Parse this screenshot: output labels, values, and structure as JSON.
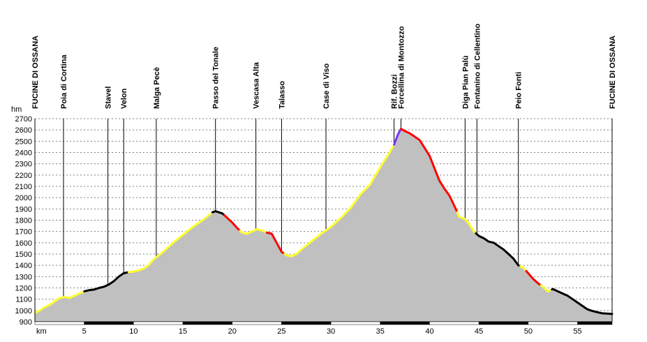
{
  "chart_data": {
    "type": "area",
    "ylabel": "hm",
    "xlabel": "km",
    "ylim": [
      900,
      2700
    ],
    "yticks": [
      900,
      1000,
      1100,
      1200,
      1300,
      1400,
      1500,
      1600,
      1700,
      1800,
      1900,
      2000,
      2100,
      2200,
      2300,
      2400,
      2500,
      2600,
      2700
    ],
    "xlim": [
      0,
      58.5
    ],
    "xticks": [
      5,
      10,
      15,
      20,
      25,
      30,
      35,
      40,
      45,
      50,
      55
    ],
    "grid": "horizontal dashed",
    "waypoints": [
      {
        "km": 0,
        "label": "FUCINE DI OSSANA"
      },
      {
        "km": 2.9,
        "label": "Poia di Cortina"
      },
      {
        "km": 7.4,
        "label": "Stavel"
      },
      {
        "km": 9.0,
        "label": "Velon"
      },
      {
        "km": 12.3,
        "label": "Malga Pecè"
      },
      {
        "km": 18.3,
        "label": "Passo del Tonale"
      },
      {
        "km": 22.4,
        "label": "Vescasa Alta"
      },
      {
        "km": 25.0,
        "label": "Talasso"
      },
      {
        "km": 29.5,
        "label": "Case di Viso"
      },
      {
        "km": 36.4,
        "label": "Rif. Bozzi"
      },
      {
        "km": 37.1,
        "label": "Forcellina di Montozzo"
      },
      {
        "km": 43.6,
        "label": "Diga Pian Palù"
      },
      {
        "km": 44.8,
        "label": "Fontanino di Cellentino"
      },
      {
        "km": 49.0,
        "label": "Peio Fonti"
      },
      {
        "km": 58.5,
        "label": "FUCINE DI OSSANA"
      }
    ],
    "profile": [
      [
        0,
        980
      ],
      [
        0.5,
        1000
      ],
      [
        1,
        1030
      ],
      [
        1.5,
        1050
      ],
      [
        2,
        1080
      ],
      [
        2.5,
        1110
      ],
      [
        3,
        1120
      ],
      [
        3.5,
        1110
      ],
      [
        4,
        1130
      ],
      [
        4.5,
        1150
      ],
      [
        5,
        1170
      ],
      [
        5.5,
        1180
      ],
      [
        6,
        1185
      ],
      [
        6.5,
        1200
      ],
      [
        7,
        1210
      ],
      [
        7.5,
        1230
      ],
      [
        8,
        1260
      ],
      [
        8.5,
        1300
      ],
      [
        9,
        1330
      ],
      [
        9.5,
        1340
      ],
      [
        10,
        1345
      ],
      [
        10.5,
        1355
      ],
      [
        11,
        1370
      ],
      [
        11.5,
        1400
      ],
      [
        12,
        1450
      ],
      [
        13,
        1520
      ],
      [
        14,
        1600
      ],
      [
        15,
        1670
      ],
      [
        16,
        1740
      ],
      [
        17,
        1800
      ],
      [
        18,
        1870
      ],
      [
        18.3,
        1880
      ],
      [
        19,
        1860
      ],
      [
        19.5,
        1820
      ],
      [
        20,
        1780
      ],
      [
        20.5,
        1730
      ],
      [
        21,
        1690
      ],
      [
        21.5,
        1680
      ],
      [
        22,
        1700
      ],
      [
        22.5,
        1720
      ],
      [
        23,
        1710
      ],
      [
        23.5,
        1690
      ],
      [
        24,
        1680
      ],
      [
        24.5,
        1600
      ],
      [
        25,
        1520
      ],
      [
        25.5,
        1490
      ],
      [
        26,
        1480
      ],
      [
        26.5,
        1500
      ],
      [
        27,
        1540
      ],
      [
        28,
        1610
      ],
      [
        29,
        1680
      ],
      [
        30,
        1740
      ],
      [
        31,
        1820
      ],
      [
        32,
        1910
      ],
      [
        33,
        2030
      ],
      [
        34,
        2120
      ],
      [
        35,
        2270
      ],
      [
        35.8,
        2380
      ],
      [
        36.4,
        2470
      ],
      [
        36.8,
        2560
      ],
      [
        37.1,
        2610
      ],
      [
        37.5,
        2590
      ],
      [
        38,
        2570
      ],
      [
        38.5,
        2540
      ],
      [
        39,
        2510
      ],
      [
        39.5,
        2440
      ],
      [
        40,
        2370
      ],
      [
        40.5,
        2260
      ],
      [
        41,
        2150
      ],
      [
        41.5,
        2080
      ],
      [
        42,
        2020
      ],
      [
        42.5,
        1930
      ],
      [
        43,
        1830
      ],
      [
        43.6,
        1810
      ],
      [
        44,
        1770
      ],
      [
        44.5,
        1700
      ],
      [
        45,
        1660
      ],
      [
        45.5,
        1640
      ],
      [
        46,
        1610
      ],
      [
        46.5,
        1600
      ],
      [
        47,
        1570
      ],
      [
        47.5,
        1540
      ],
      [
        48,
        1500
      ],
      [
        48.5,
        1460
      ],
      [
        49,
        1400
      ],
      [
        49.5,
        1380
      ],
      [
        50,
        1330
      ],
      [
        50.5,
        1280
      ],
      [
        51,
        1240
      ],
      [
        51.5,
        1210
      ],
      [
        52,
        1170
      ],
      [
        52.5,
        1190
      ],
      [
        53,
        1170
      ],
      [
        53.5,
        1150
      ],
      [
        54,
        1130
      ],
      [
        54.5,
        1100
      ],
      [
        55,
        1070
      ],
      [
        55.5,
        1040
      ],
      [
        56,
        1010
      ],
      [
        56.5,
        995
      ],
      [
        57,
        985
      ],
      [
        57.5,
        975
      ],
      [
        58.5,
        970
      ]
    ],
    "segments": [
      {
        "from": 0,
        "to": 3,
        "color": "#ffff33"
      },
      {
        "from": 3,
        "to": 5,
        "color": "#ffff33"
      },
      {
        "from": 5,
        "to": 7.3,
        "color": "#000000"
      },
      {
        "from": 7.3,
        "to": 9.5,
        "color": "#000000"
      },
      {
        "from": 9.5,
        "to": 18.0,
        "color": "#ffff33"
      },
      {
        "from": 18.0,
        "to": 19.2,
        "color": "#000000"
      },
      {
        "from": 19.2,
        "to": 20.8,
        "color": "#ff0000"
      },
      {
        "from": 20.8,
        "to": 23.5,
        "color": "#ffff33"
      },
      {
        "from": 23.5,
        "to": 25.3,
        "color": "#ff0000"
      },
      {
        "from": 25.3,
        "to": 36.4,
        "color": "#ffff33"
      },
      {
        "from": 36.4,
        "to": 37.1,
        "color": "#7733ff"
      },
      {
        "from": 37.1,
        "to": 42.8,
        "color": "#ff0000"
      },
      {
        "from": 42.8,
        "to": 44.7,
        "color": "#ffff33"
      },
      {
        "from": 44.7,
        "to": 49.2,
        "color": "#000000"
      },
      {
        "from": 49.2,
        "to": 49.8,
        "color": "#ffff33"
      },
      {
        "from": 49.8,
        "to": 51.3,
        "color": "#ff0000"
      },
      {
        "from": 51.3,
        "to": 52.4,
        "color": "#ffff33"
      },
      {
        "from": 52.4,
        "to": 58.5,
        "color": "#000000"
      }
    ],
    "colors": {
      "fill": "#c0c0c0",
      "grid": "#808080",
      "axis": "#000000"
    }
  }
}
